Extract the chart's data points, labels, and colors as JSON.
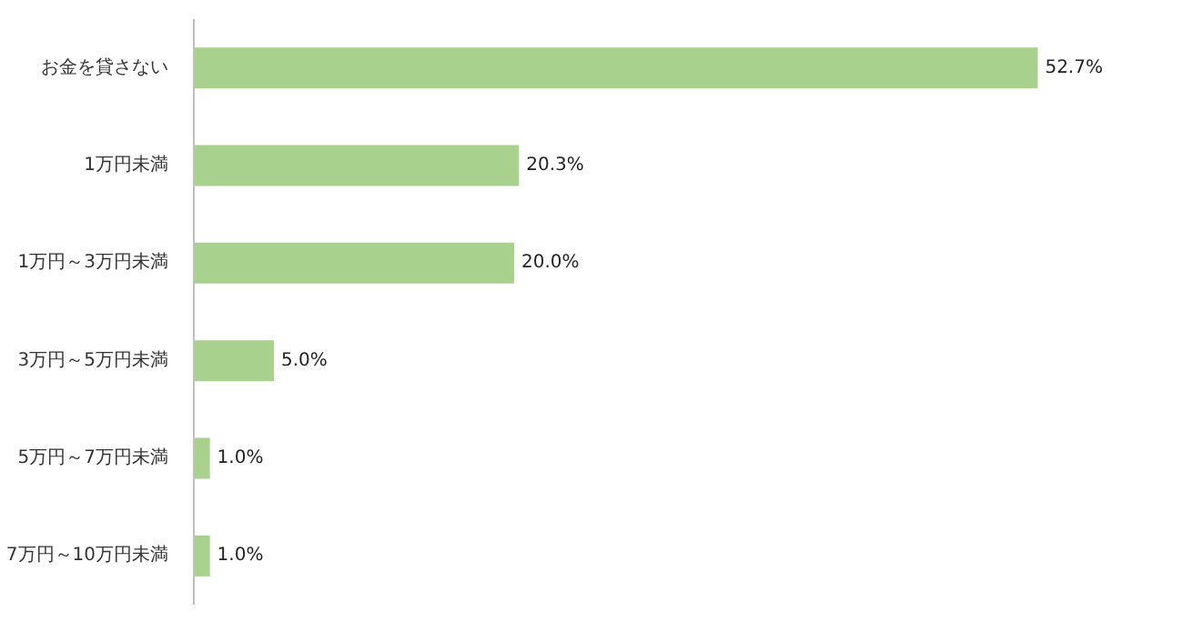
{
  "chart_data": {
    "type": "bar",
    "orientation": "horizontal",
    "categories": [
      "お金を貸さない",
      "1万円未満",
      "1万円～3万円未満",
      "3万円～5万円未満",
      "5万円～7万円未満",
      "7万円～10万円未満"
    ],
    "values": [
      52.7,
      20.3,
      20.0,
      5.0,
      1.0,
      1.0
    ],
    "value_labels": [
      "52.7%",
      "20.3%",
      "20.0%",
      "5.0%",
      "1.0%",
      "1.0%"
    ],
    "color": "#a9d18e"
  }
}
